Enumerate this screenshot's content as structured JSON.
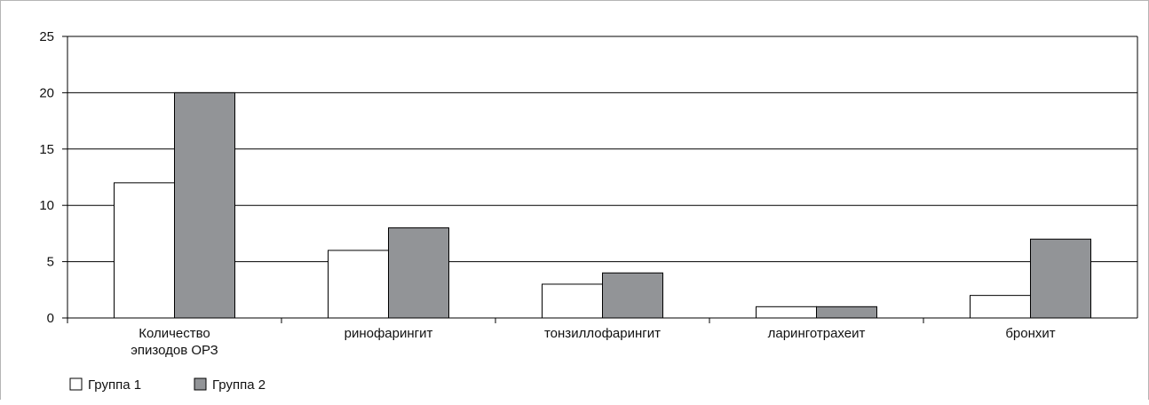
{
  "chart_data": {
    "type": "bar",
    "title": "",
    "xlabel": "",
    "ylabel": "",
    "categories": [
      [
        "Количество",
        "эпизодов ОРЗ"
      ],
      [
        "ринофарингит"
      ],
      [
        "тонзиллофарингит"
      ],
      [
        "ларинготрахеит"
      ],
      [
        "бронхит"
      ]
    ],
    "series": [
      {
        "name": "Группа 1",
        "values": [
          12,
          6,
          3,
          1,
          2
        ],
        "color": "#ffffff"
      },
      {
        "name": "Группа 2",
        "values": [
          20,
          8,
          4,
          1,
          7
        ],
        "color": "#929497"
      }
    ],
    "ylim": [
      0,
      25
    ],
    "yticks": [
      "0",
      "5",
      "10",
      "15",
      "20",
      "25"
    ],
    "grid": true,
    "legend_position": "bottom-left"
  }
}
